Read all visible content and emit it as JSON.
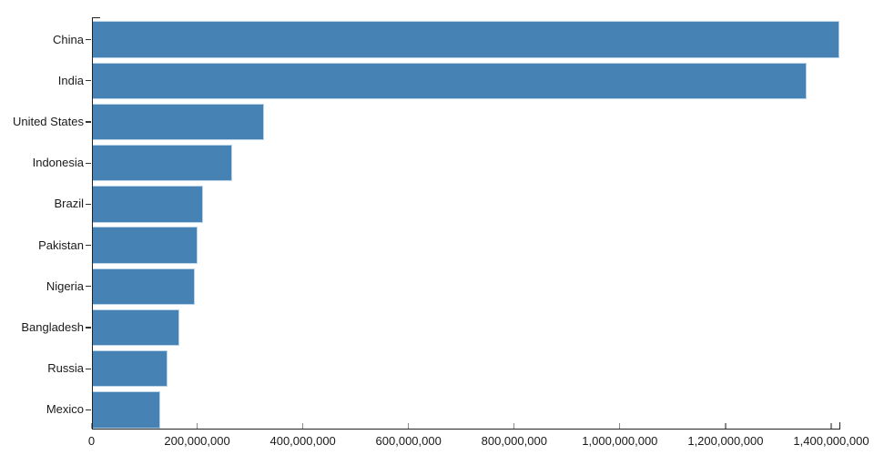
{
  "chart_data": {
    "type": "bar",
    "orientation": "horizontal",
    "title": "",
    "xlabel": "",
    "ylabel": "",
    "categories": [
      "China",
      "India",
      "United States",
      "Indonesia",
      "Brazil",
      "Pakistan",
      "Nigeria",
      "Bangladesh",
      "Russia",
      "Mexico"
    ],
    "values": [
      1415045928,
      1354051854,
      326766748,
      266794980,
      210867954,
      200813818,
      195875237,
      166368149,
      143964709,
      130759074
    ],
    "xlim": [
      0,
      1415045928
    ],
    "x_ticks": [
      0,
      200000000,
      400000000,
      600000000,
      800000000,
      1000000000,
      1200000000,
      1400000000
    ],
    "x_tick_labels": [
      "0",
      "200,000,000",
      "400,000,000",
      "600,000,000",
      "800,000,000",
      "1,000,000,000",
      "1,200,000,000",
      "1,400,000,000"
    ],
    "grid": false,
    "legend": "none",
    "colors": {
      "bar_fill": "#4682b4",
      "bar_edge": "#b9d3e8",
      "axis_line": "#222222",
      "x_tick": "#8a8a8a",
      "y_tick": "#333333",
      "label_text": "#1a1a1a",
      "background": "#ffffff"
    }
  }
}
